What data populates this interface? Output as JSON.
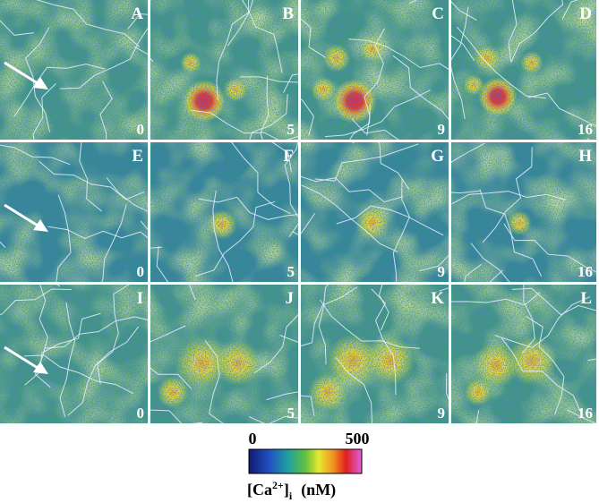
{
  "panels": [
    {
      "label": "A",
      "time": 0
    },
    {
      "label": "B",
      "time": 5
    },
    {
      "label": "C",
      "time": 9
    },
    {
      "label": "D",
      "time": 16
    },
    {
      "label": "E",
      "time": 0
    },
    {
      "label": "F",
      "time": 5
    },
    {
      "label": "G",
      "time": 9
    },
    {
      "label": "H",
      "time": 16
    },
    {
      "label": "I",
      "time": 0
    },
    {
      "label": "J",
      "time": 5
    },
    {
      "label": "K",
      "time": 9
    },
    {
      "label": "L",
      "time": 16
    }
  ],
  "colorbar": {
    "min": 0,
    "max": 500,
    "label": {
      "open": "[Ca",
      "sup": "2+",
      "close": "]",
      "sub": "i",
      "unit": "(nM)"
    }
  }
}
